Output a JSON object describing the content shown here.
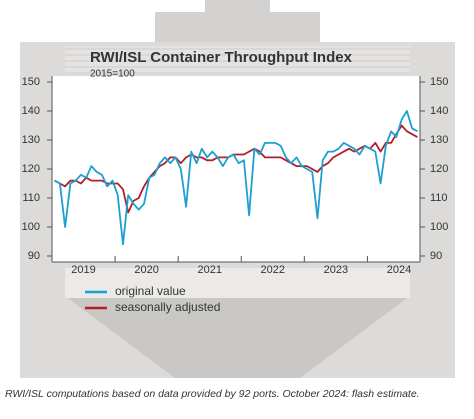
{
  "chart_data": {
    "type": "line",
    "title": "RWI/ISL Container Throughput Index",
    "subtitle": "2015=100",
    "footnote": "RWI/ISL computations based on data provided by 92 ports. October 2024: flash estimate.",
    "categories": [
      null,
      null,
      null,
      null,
      null,
      null,
      "2019",
      null,
      null,
      null,
      null,
      null,
      null,
      null,
      null,
      null,
      null,
      null,
      "2020",
      null,
      null,
      null,
      null,
      null,
      null,
      null,
      null,
      null,
      null,
      null,
      "2021",
      null,
      null,
      null,
      null,
      null,
      null,
      null,
      null,
      null,
      null,
      null,
      "2022",
      null,
      null,
      null,
      null,
      null,
      null,
      null,
      null,
      null,
      null,
      null,
      "2023",
      null,
      null,
      null,
      null,
      null,
      null,
      null,
      null,
      null,
      null,
      null,
      "2024",
      null,
      null,
      null
    ],
    "series": [
      {
        "name": "original value",
        "color": "#1ca0d2",
        "values": [
          116,
          115,
          100,
          115,
          116,
          118,
          117,
          121,
          119,
          118,
          114,
          116,
          111,
          94,
          111,
          108,
          106,
          108,
          117,
          118,
          122,
          124,
          122,
          124,
          120,
          107,
          126,
          122,
          127,
          124,
          126,
          124,
          121,
          124,
          125,
          122,
          123,
          104,
          127,
          125,
          129,
          129,
          129,
          128,
          124,
          122,
          124,
          121,
          120,
          119,
          103,
          123,
          126,
          126,
          127,
          129,
          128,
          127,
          125,
          128,
          127,
          126,
          115,
          128,
          133,
          131,
          137,
          140,
          134,
          133
        ]
      },
      {
        "name": "seasonally adjusted",
        "color": "#b01f2b",
        "values": [
          116,
          115,
          114,
          116,
          116,
          115,
          117,
          116,
          116,
          116,
          115,
          115,
          115,
          113,
          105,
          109,
          110,
          114,
          117,
          119,
          121,
          122,
          124,
          124,
          122,
          124,
          125,
          124,
          124,
          123,
          123,
          124,
          124,
          124,
          125,
          125,
          125,
          126,
          127,
          126,
          124,
          124,
          124,
          124,
          123,
          122,
          121,
          121,
          121,
          120,
          119,
          121,
          122,
          124,
          125,
          126,
          127,
          126,
          127,
          128,
          127,
          129,
          126,
          129,
          129,
          132,
          135,
          133,
          132,
          131
        ]
      }
    ],
    "ylim": [
      90,
      150
    ],
    "yticks": [
      90,
      100,
      110,
      120,
      130,
      140,
      150
    ],
    "y2lim": [
      90,
      150
    ],
    "y2ticks": [
      90,
      100,
      110,
      120,
      130,
      140,
      150
    ]
  }
}
